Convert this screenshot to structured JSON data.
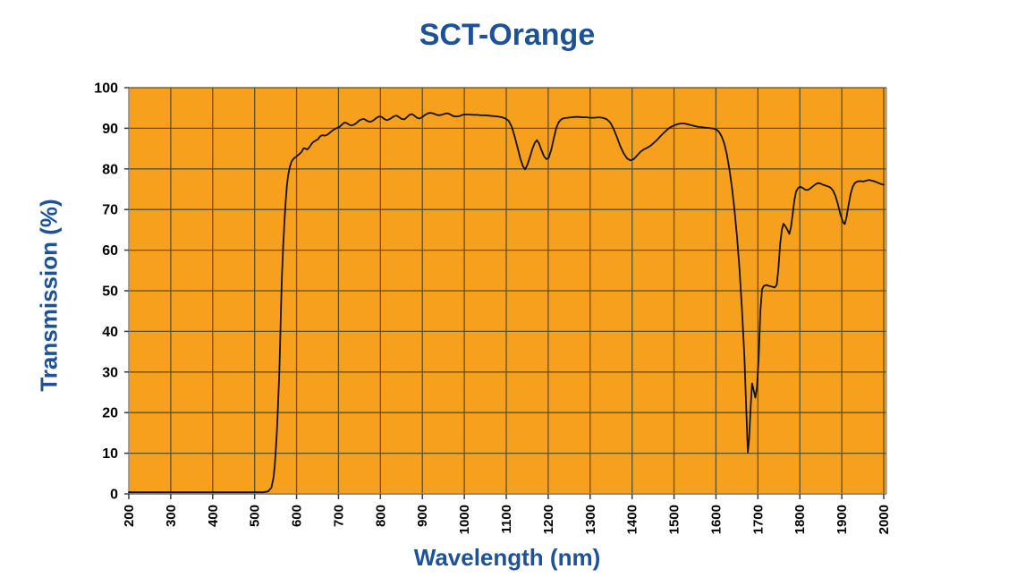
{
  "chart_data": {
    "type": "line",
    "title": "SCT-Orange",
    "xlabel": "Wavelength (nm)",
    "ylabel": "Transmission (%)",
    "xlim": [
      200,
      2000
    ],
    "ylim": [
      0,
      100
    ],
    "x_ticks": [
      200,
      300,
      400,
      500,
      600,
      700,
      800,
      900,
      1000,
      1100,
      1200,
      1300,
      1400,
      1500,
      1600,
      1700,
      1800,
      1900,
      2000
    ],
    "y_ticks": [
      0,
      10,
      20,
      30,
      40,
      50,
      60,
      70,
      80,
      90,
      100
    ],
    "grid": true,
    "legend": "none",
    "colors": {
      "plot_background": "#f7a01e",
      "gridline": "#5d5126",
      "axis_line": "#8a8a8a",
      "tick_mark": "#3a3a3a",
      "curve": "#111111",
      "title_text": "#1d5296",
      "tick_text": "#000000"
    },
    "series": [
      {
        "name": "Transmission",
        "points": [
          [
            200,
            0.4
          ],
          [
            300,
            0.4
          ],
          [
            400,
            0.4
          ],
          [
            450,
            0.4
          ],
          [
            500,
            0.4
          ],
          [
            520,
            0.4
          ],
          [
            532,
            0.6
          ],
          [
            540,
            1.5
          ],
          [
            545,
            4
          ],
          [
            548,
            7
          ],
          [
            550,
            10
          ],
          [
            553,
            15
          ],
          [
            555,
            20
          ],
          [
            557,
            25
          ],
          [
            559,
            30
          ],
          [
            561,
            38
          ],
          [
            563,
            46
          ],
          [
            565,
            53
          ],
          [
            568,
            61
          ],
          [
            571,
            67
          ],
          [
            574,
            72
          ],
          [
            577,
            76
          ],
          [
            580,
            78.5
          ],
          [
            584,
            80.5
          ],
          [
            588,
            81.8
          ],
          [
            592,
            82.4
          ],
          [
            596,
            82.8
          ],
          [
            600,
            83.1
          ],
          [
            606,
            83.6
          ],
          [
            612,
            84.2
          ],
          [
            617,
            85.1
          ],
          [
            621,
            85
          ],
          [
            626,
            84.8
          ],
          [
            631,
            85.4
          ],
          [
            636,
            86.2
          ],
          [
            641,
            86.7
          ],
          [
            646,
            87
          ],
          [
            651,
            87.3
          ],
          [
            656,
            88
          ],
          [
            661,
            88.3
          ],
          [
            667,
            88.2
          ],
          [
            673,
            88.4
          ],
          [
            679,
            88.9
          ],
          [
            685,
            89.4
          ],
          [
            691,
            89.8
          ],
          [
            697,
            90.1
          ],
          [
            703,
            90.4
          ],
          [
            708,
            90.9
          ],
          [
            714,
            91.4
          ],
          [
            719,
            91.3
          ],
          [
            725,
            90.9
          ],
          [
            731,
            90.7
          ],
          [
            737,
            90.9
          ],
          [
            743,
            91.3
          ],
          [
            749,
            91.9
          ],
          [
            755,
            92.2
          ],
          [
            761,
            92.3
          ],
          [
            767,
            91.9
          ],
          [
            773,
            91.6
          ],
          [
            779,
            91.7
          ],
          [
            785,
            92.1
          ],
          [
            791,
            92.6
          ],
          [
            797,
            92.9
          ],
          [
            803,
            92.8
          ],
          [
            809,
            92.3
          ],
          [
            815,
            92
          ],
          [
            821,
            92.2
          ],
          [
            827,
            92.6
          ],
          [
            833,
            93
          ],
          [
            839,
            93.1
          ],
          [
            845,
            92.7
          ],
          [
            851,
            92.3
          ],
          [
            857,
            92.2
          ],
          [
            863,
            92.7
          ],
          [
            869,
            93.3
          ],
          [
            875,
            93.5
          ],
          [
            881,
            93.1
          ],
          [
            887,
            92.6
          ],
          [
            893,
            92.4
          ],
          [
            899,
            92.7
          ],
          [
            905,
            93.2
          ],
          [
            911,
            93.6
          ],
          [
            918,
            93.8
          ],
          [
            925,
            93.7
          ],
          [
            932,
            93.4
          ],
          [
            939,
            93.2
          ],
          [
            946,
            93.3
          ],
          [
            953,
            93.6
          ],
          [
            960,
            93.7
          ],
          [
            967,
            93.4
          ],
          [
            974,
            93
          ],
          [
            981,
            92.9
          ],
          [
            988,
            93
          ],
          [
            995,
            93.3
          ],
          [
            1003,
            93.4
          ],
          [
            1012,
            93.4
          ],
          [
            1021,
            93.3
          ],
          [
            1030,
            93.3
          ],
          [
            1040,
            93.2
          ],
          [
            1050,
            93.2
          ],
          [
            1060,
            93.1
          ],
          [
            1070,
            93
          ],
          [
            1080,
            92.9
          ],
          [
            1090,
            92.7
          ],
          [
            1098,
            92.4
          ],
          [
            1106,
            91.8
          ],
          [
            1113,
            90.4
          ],
          [
            1120,
            88
          ],
          [
            1127,
            85.2
          ],
          [
            1134,
            82.4
          ],
          [
            1140,
            80.6
          ],
          [
            1145,
            79.9
          ],
          [
            1150,
            80.9
          ],
          [
            1156,
            82.8
          ],
          [
            1162,
            84.9
          ],
          [
            1168,
            86.4
          ],
          [
            1173,
            87.1
          ],
          [
            1178,
            86.3
          ],
          [
            1184,
            84.6
          ],
          [
            1190,
            83.1
          ],
          [
            1196,
            82.4
          ],
          [
            1201,
            82.7
          ],
          [
            1207,
            84.6
          ],
          [
            1213,
            87.4
          ],
          [
            1219,
            90
          ],
          [
            1225,
            91.5
          ],
          [
            1231,
            92.2
          ],
          [
            1238,
            92.5
          ],
          [
            1246,
            92.6
          ],
          [
            1255,
            92.7
          ],
          [
            1264,
            92.8
          ],
          [
            1273,
            92.8
          ],
          [
            1282,
            92.7
          ],
          [
            1291,
            92.7
          ],
          [
            1300,
            92.6
          ],
          [
            1310,
            92.6
          ],
          [
            1320,
            92.7
          ],
          [
            1330,
            92.6
          ],
          [
            1340,
            92.2
          ],
          [
            1348,
            91.4
          ],
          [
            1356,
            89.9
          ],
          [
            1364,
            87.8
          ],
          [
            1372,
            85.6
          ],
          [
            1380,
            83.8
          ],
          [
            1388,
            82.6
          ],
          [
            1396,
            82.1
          ],
          [
            1404,
            82.4
          ],
          [
            1412,
            83.3
          ],
          [
            1420,
            84.2
          ],
          [
            1428,
            84.8
          ],
          [
            1436,
            85.2
          ],
          [
            1444,
            85.7
          ],
          [
            1452,
            86.4
          ],
          [
            1460,
            87.2
          ],
          [
            1468,
            88.1
          ],
          [
            1476,
            88.9
          ],
          [
            1484,
            89.7
          ],
          [
            1492,
            90.3
          ],
          [
            1500,
            90.7
          ],
          [
            1508,
            91
          ],
          [
            1516,
            91.2
          ],
          [
            1524,
            91.2
          ],
          [
            1532,
            91
          ],
          [
            1540,
            90.8
          ],
          [
            1548,
            90.6
          ],
          [
            1556,
            90.4
          ],
          [
            1564,
            90.3
          ],
          [
            1572,
            90.2
          ],
          [
            1580,
            90.1
          ],
          [
            1588,
            90
          ],
          [
            1596,
            89.9
          ],
          [
            1602,
            89.6
          ],
          [
            1608,
            89
          ],
          [
            1614,
            87.9
          ],
          [
            1620,
            86.2
          ],
          [
            1626,
            83.6
          ],
          [
            1632,
            80
          ],
          [
            1638,
            75.5
          ],
          [
            1644,
            70
          ],
          [
            1650,
            63.5
          ],
          [
            1656,
            55.5
          ],
          [
            1662,
            45.5
          ],
          [
            1668,
            33.5
          ],
          [
            1672,
            21.5
          ],
          [
            1676,
            10.2
          ],
          [
            1679,
            13.5
          ],
          [
            1683,
            22
          ],
          [
            1686,
            27.2
          ],
          [
            1690,
            25.5
          ],
          [
            1694,
            23.7
          ],
          [
            1698,
            26.5
          ],
          [
            1702,
            34
          ],
          [
            1706,
            45
          ],
          [
            1710,
            50.4
          ],
          [
            1714,
            51.2
          ],
          [
            1720,
            51.4
          ],
          [
            1727,
            51.2
          ],
          [
            1734,
            51
          ],
          [
            1740,
            50.8
          ],
          [
            1745,
            51.5
          ],
          [
            1749,
            55.5
          ],
          [
            1753,
            61.5
          ],
          [
            1757,
            65
          ],
          [
            1761,
            66.5
          ],
          [
            1766,
            65.8
          ],
          [
            1771,
            64.9
          ],
          [
            1775,
            64
          ],
          [
            1779,
            65.8
          ],
          [
            1783,
            69
          ],
          [
            1787,
            72.3
          ],
          [
            1791,
            74.4
          ],
          [
            1796,
            75.3
          ],
          [
            1801,
            75.6
          ],
          [
            1807,
            75.3
          ],
          [
            1813,
            74.9
          ],
          [
            1819,
            74.8
          ],
          [
            1825,
            75.2
          ],
          [
            1831,
            75.7
          ],
          [
            1837,
            76.2
          ],
          [
            1843,
            76.5
          ],
          [
            1849,
            76.4
          ],
          [
            1855,
            76.1
          ],
          [
            1861,
            75.9
          ],
          [
            1867,
            75.7
          ],
          [
            1873,
            75.4
          ],
          [
            1879,
            74.7
          ],
          [
            1885,
            73.3
          ],
          [
            1891,
            71.2
          ],
          [
            1897,
            68.7
          ],
          [
            1903,
            66.9
          ],
          [
            1907,
            66.4
          ],
          [
            1911,
            68
          ],
          [
            1916,
            71
          ],
          [
            1921,
            73.8
          ],
          [
            1926,
            75.6
          ],
          [
            1931,
            76.5
          ],
          [
            1937,
            76.9
          ],
          [
            1944,
            77
          ],
          [
            1951,
            76.9
          ],
          [
            1958,
            77.1
          ],
          [
            1965,
            77.3
          ],
          [
            1972,
            77.1
          ],
          [
            1979,
            76.9
          ],
          [
            1986,
            76.6
          ],
          [
            1993,
            76.3
          ],
          [
            2000,
            76.1
          ]
        ]
      }
    ]
  }
}
